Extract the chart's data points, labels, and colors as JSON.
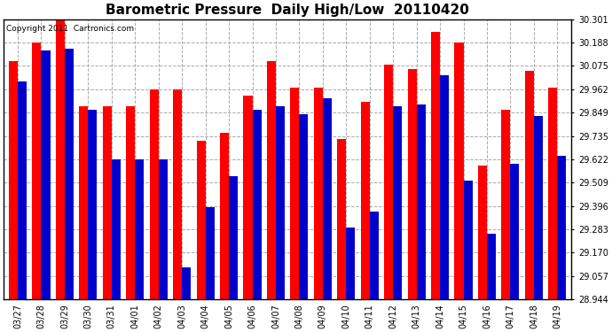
{
  "title": "Barometric Pressure  Daily High/Low  20110420",
  "copyright": "Copyright 2011  Cartronics.com",
  "dates": [
    "03/27",
    "03/28",
    "03/29",
    "03/30",
    "03/31",
    "04/01",
    "04/02",
    "04/03",
    "04/04",
    "04/05",
    "04/06",
    "04/07",
    "04/08",
    "04/09",
    "04/10",
    "04/11",
    "04/12",
    "04/13",
    "04/14",
    "04/15",
    "04/16",
    "04/17",
    "04/18",
    "04/19"
  ],
  "highs": [
    30.1,
    30.19,
    30.3,
    29.88,
    29.88,
    29.88,
    29.96,
    29.96,
    29.71,
    29.75,
    29.93,
    30.1,
    29.97,
    29.97,
    29.72,
    29.9,
    30.08,
    30.06,
    30.24,
    30.19,
    29.59,
    29.86,
    30.05,
    29.97
  ],
  "lows": [
    30.0,
    30.15,
    30.16,
    29.86,
    29.62,
    29.62,
    29.62,
    29.1,
    29.39,
    29.54,
    29.86,
    29.88,
    29.84,
    29.92,
    29.29,
    29.37,
    29.88,
    29.89,
    30.03,
    29.52,
    29.26,
    29.6,
    29.83,
    29.64
  ],
  "ymin": 28.944,
  "ymax": 30.301,
  "yticks": [
    28.944,
    29.057,
    29.17,
    29.283,
    29.396,
    29.509,
    29.622,
    29.735,
    29.849,
    29.962,
    30.075,
    30.188,
    30.301
  ],
  "bar_width": 0.38,
  "high_color": "#ff0000",
  "low_color": "#0000cc",
  "bg_color": "#ffffff",
  "grid_color": "#aaaaaa",
  "title_fontsize": 11,
  "tick_fontsize": 7,
  "copyright_fontsize": 6.5
}
